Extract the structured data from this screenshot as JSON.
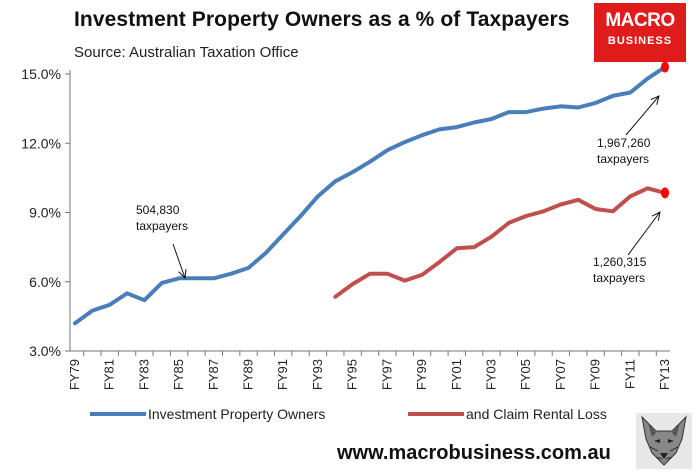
{
  "header": {
    "title": "Investment Property Owners as a % of Taxpayers",
    "source": "Source: Australian Taxation Office"
  },
  "logo": {
    "line1": "MACRO",
    "line2": "BUSINESS",
    "color": "#e01b1b"
  },
  "footer": {
    "url": "www.macrobusiness.com.au"
  },
  "chart_data": {
    "type": "line",
    "title": "Investment Property Owners as a % of Taxpayers",
    "xlabel": "",
    "ylabel": "",
    "ylim": [
      3.0,
      15.0
    ],
    "yticks": [
      "3.0%",
      "6.0%",
      "9.0%",
      "12.0%",
      "15.0%"
    ],
    "ytick_values": [
      3.0,
      6.0,
      9.0,
      12.0,
      15.0
    ],
    "categories": [
      "FY79",
      "FY80",
      "FY81",
      "FY82",
      "FY83",
      "FY84",
      "FY85",
      "FY86",
      "FY87",
      "FY88",
      "FY89",
      "FY90",
      "FY91",
      "FY92",
      "FY93",
      "FY94",
      "FY95",
      "FY96",
      "FY97",
      "FY98",
      "FY99",
      "FY00",
      "FY01",
      "FY02",
      "FY03",
      "FY04",
      "FY05",
      "FY06",
      "FY07",
      "FY08",
      "FY09",
      "FY10",
      "FY11",
      "FY12",
      "FY13"
    ],
    "xtick_labels": [
      "FY79",
      "FY81",
      "FY83",
      "FY85",
      "FY87",
      "FY89",
      "FY91",
      "FY93",
      "FY95",
      "FY97",
      "FY99",
      "FY01",
      "FY03",
      "FY05",
      "FY07",
      "FY09",
      "FY11",
      "FY13"
    ],
    "series": [
      {
        "name": "Investment Property Owners",
        "color": "#4a7ebb",
        "values": [
          4.2,
          4.75,
          5.0,
          5.5,
          5.2,
          5.95,
          6.15,
          6.15,
          6.15,
          6.35,
          6.6,
          7.25,
          8.05,
          8.85,
          9.7,
          10.35,
          10.75,
          11.2,
          11.7,
          12.05,
          12.35,
          12.6,
          12.7,
          12.9,
          13.05,
          13.35,
          13.35,
          13.5,
          13.6,
          13.55,
          13.75,
          14.05,
          14.2,
          14.8,
          15.3
        ]
      },
      {
        "name": "and Claim Rental Loss",
        "color": "#c0504d",
        "values": [
          null,
          null,
          null,
          null,
          null,
          null,
          null,
          null,
          null,
          null,
          null,
          null,
          null,
          null,
          null,
          5.35,
          5.9,
          6.35,
          6.35,
          6.05,
          6.3,
          6.85,
          7.45,
          7.5,
          7.95,
          8.55,
          8.85,
          9.05,
          9.35,
          9.55,
          9.15,
          9.05,
          9.7,
          10.05,
          9.85
        ]
      }
    ],
    "endpoint_color": "#ff0000",
    "annotations": [
      {
        "line1": "504,830",
        "line2": "taxpayers",
        "series": 0,
        "index": 6
      },
      {
        "line1": "1,967,260",
        "line2": "taxpayers",
        "series": 0,
        "index": 34
      },
      {
        "line1": "1,260,315",
        "line2": "taxpayers",
        "series": 1,
        "index": 34
      }
    ],
    "legend": {
      "position": "bottom"
    }
  }
}
